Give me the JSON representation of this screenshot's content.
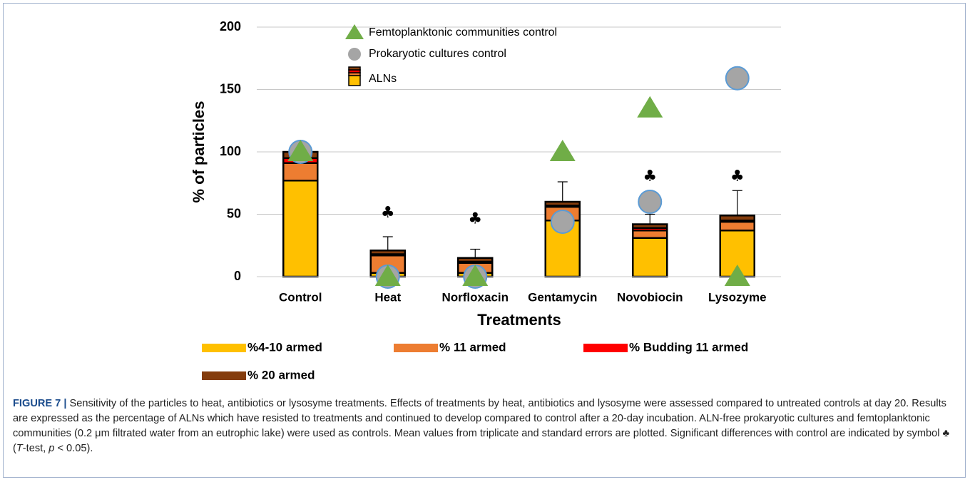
{
  "chart_data": {
    "type": "stacked_bar",
    "categories": [
      "Control",
      "Heat",
      "Norfloxacin",
      "Gentamycin",
      "Novobiocin",
      "Lysozyme"
    ],
    "xlabel": "Treatments",
    "ylabel": "% of particles",
    "ylim": [
      0,
      200
    ],
    "yticks": [
      0,
      50,
      100,
      150,
      200
    ],
    "grid": true,
    "series": [
      {
        "name": "%4-10 armed",
        "color": "#ffc000",
        "values": [
          77,
          3,
          3,
          45,
          31,
          37
        ]
      },
      {
        "name": "% 11 armed",
        "color": "#ed7d31",
        "values": [
          14,
          14,
          8,
          11,
          6,
          7
        ]
      },
      {
        "name": "% Budding 11 armed",
        "color": "#ff0000",
        "values": [
          4,
          1,
          1,
          1,
          2,
          1
        ]
      },
      {
        "name": "% 20 armed",
        "color": "#843c0c",
        "values": [
          5,
          3,
          3,
          3,
          3,
          4
        ]
      }
    ],
    "errors": [
      null,
      11,
      7,
      16,
      8,
      20
    ],
    "bar_legend_name": "ALNs",
    "marker_series": [
      {
        "name": "Femtoplanktonic communities  control",
        "marker": "triangle",
        "color": "#70ad47",
        "values": [
          100,
          0,
          0,
          100,
          135,
          0
        ]
      },
      {
        "name": "Prokaryotic cultures control",
        "marker": "circle",
        "color": "#a5a5a5",
        "values": [
          100,
          0,
          0,
          44,
          60,
          159
        ]
      }
    ],
    "significance_symbol": "♣",
    "significance_y": [
      null,
      51,
      46,
      null,
      80,
      80
    ]
  },
  "caption": {
    "parts": [
      "FIGURE 7 |",
      " Sensitivity of the particles to heat, antibiotics or lysosyme treatments. Effects of treatments by heat, antibiotics and lysosyme were assessed compared to untreated controls at day 20. Results are expressed as the percentage of ALNs which have resisted to treatments and continued to develop compared to control after a 20-day incubation. ALN-free prokaryotic cultures and femtoplanktonic communities (0.2 μm filtrated water from an eutrophic lake) were used as controls. Mean values from triplicate and standard errors are plotted. Significant differences with control are indicated by symbol ♣ (",
      "T",
      "-test, ",
      "p",
      " < 0.05)."
    ]
  }
}
